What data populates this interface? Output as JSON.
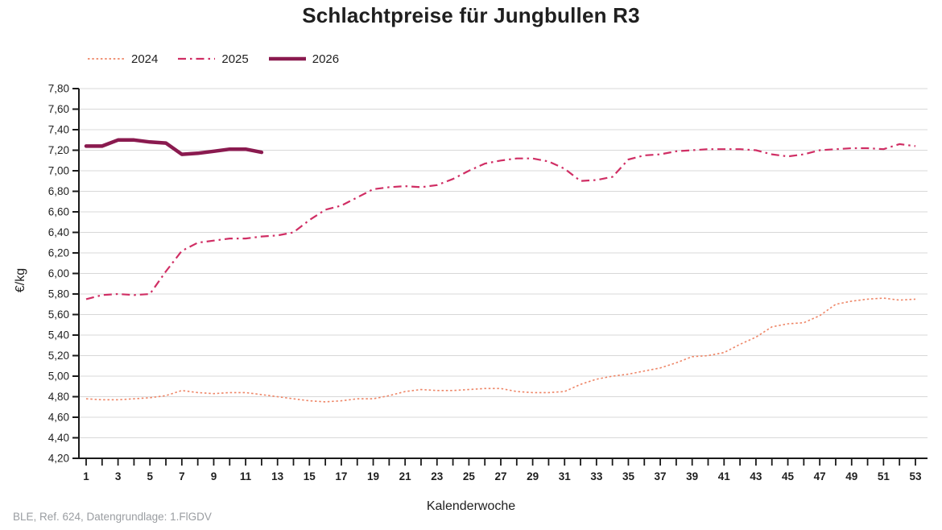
{
  "footer": "BLE, Ref. 624, Datengrundlage: 1.FlGDV",
  "colors": {
    "series_2024": "#EE8566",
    "series_2025": "#D02E64",
    "series_2026": "#8A1A4F",
    "gridline": "#d8d8d8",
    "axis": "#1a1a1a",
    "text": "#1f1f1f",
    "footer_text": "#9a9da1"
  },
  "chart_data": {
    "type": "line",
    "title": "Schlachtpreise für Jungbullen R3",
    "xlabel": "Kalenderwoche",
    "ylabel": "€/kg",
    "ylim": [
      4.2,
      7.8
    ],
    "y_step": 0.2,
    "xlim": [
      1,
      53
    ],
    "grid": "horizontal",
    "legend_position": "top-left",
    "y_tick_labels": [
      "7,80",
      "7,60",
      "7,40",
      "7,20",
      "7,00",
      "6,80",
      "6,60",
      "6,40",
      "6,20",
      "6,00",
      "5,80",
      "5,60",
      "5,40",
      "5,20",
      "5,00",
      "4,80",
      "4,60",
      "4,40",
      "4,20"
    ],
    "x_ticks": [
      1,
      3,
      5,
      7,
      9,
      11,
      13,
      15,
      17,
      19,
      21,
      23,
      25,
      27,
      29,
      31,
      33,
      35,
      37,
      39,
      41,
      43,
      45,
      47,
      49,
      51,
      53
    ],
    "x_tick_labels": [
      "1",
      "3",
      "5",
      "7",
      "9",
      "11",
      "13",
      "15",
      "17",
      "19",
      "21",
      "23",
      "25",
      "27",
      "29",
      "31",
      "33",
      "35",
      "37",
      "39",
      "41",
      "43",
      "45",
      "47",
      "49",
      "51",
      "53"
    ],
    "series": [
      {
        "name": "2024",
        "color": "#EE8566",
        "style": "dotted",
        "stroke_width": 1.6,
        "x_start_week": 1,
        "values": [
          4.78,
          4.77,
          4.77,
          4.78,
          4.79,
          4.81,
          4.86,
          4.84,
          4.83,
          4.84,
          4.84,
          4.82,
          4.8,
          4.78,
          4.76,
          4.75,
          4.76,
          4.78,
          4.78,
          4.81,
          4.85,
          4.87,
          4.86,
          4.86,
          4.87,
          4.88,
          4.88,
          4.85,
          4.84,
          4.84,
          4.85,
          4.92,
          4.97,
          5.0,
          5.02,
          5.05,
          5.08,
          5.13,
          5.19,
          5.2,
          5.23,
          5.31,
          5.38,
          5.48,
          5.51,
          5.52,
          5.59,
          5.7,
          5.73,
          5.75,
          5.76,
          5.74,
          5.75
        ]
      },
      {
        "name": "2025",
        "color": "#D02E64",
        "style": "dashdot",
        "stroke_width": 2.2,
        "x_start_week": 1,
        "values": [
          5.75,
          5.79,
          5.8,
          5.79,
          5.8,
          6.02,
          6.22,
          6.3,
          6.32,
          6.34,
          6.34,
          6.36,
          6.37,
          6.4,
          6.52,
          6.62,
          6.66,
          6.74,
          6.82,
          6.84,
          6.85,
          6.84,
          6.86,
          6.92,
          7.0,
          7.07,
          7.1,
          7.12,
          7.12,
          7.09,
          7.02,
          6.9,
          6.91,
          6.94,
          7.11,
          7.15,
          7.16,
          7.19,
          7.2,
          7.21,
          7.21,
          7.21,
          7.2,
          7.16,
          7.14,
          7.16,
          7.2,
          7.21,
          7.22,
          7.22,
          7.21,
          7.26,
          7.24
        ]
      },
      {
        "name": "2026",
        "color": "#8A1A4F",
        "style": "solid",
        "stroke_width": 4.5,
        "x_start_week": 1,
        "values": [
          7.24,
          7.24,
          7.3,
          7.3,
          7.28,
          7.27,
          7.16,
          7.17,
          7.19,
          7.21,
          7.21,
          7.18
        ]
      }
    ]
  }
}
